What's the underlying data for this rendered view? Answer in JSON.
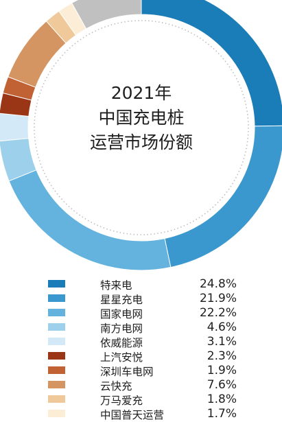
{
  "chart_data": {
    "type": "pie",
    "title": "2021年\n中国充电桩\n运营市场份额",
    "slices": [
      {
        "label": "特来电",
        "value": 24.8,
        "display": "24.8%",
        "color": "#1b7db8"
      },
      {
        "label": "星星充电",
        "value": 21.9,
        "display": "21.9%",
        "color": "#3b98cf"
      },
      {
        "label": "国家电网",
        "value": 22.2,
        "display": "22.2%",
        "color": "#64b2de"
      },
      {
        "label": "南方电网",
        "value": 4.6,
        "display": "4.6%",
        "color": "#9dd0ea"
      },
      {
        "label": "依威能源",
        "value": 3.1,
        "display": "3.1%",
        "color": "#d4e9f7"
      },
      {
        "label": "上汽安悦",
        "value": 2.3,
        "display": "2.3%",
        "color": "#9a3516"
      },
      {
        "label": "深圳车电网",
        "value": 1.9,
        "display": "1.9%",
        "color": "#c06233"
      },
      {
        "label": "云快充",
        "value": 7.6,
        "display": "7.6%",
        "color": "#d49563"
      },
      {
        "label": "万马爱充",
        "value": 1.8,
        "display": "1.8%",
        "color": "#f0c99a"
      },
      {
        "label": "中国普天运营",
        "value": 1.7,
        "display": "1.7%",
        "color": "#fcedd6"
      },
      {
        "label": "",
        "value": 8.1,
        "display": "",
        "color": "#c0c0c0"
      }
    ]
  }
}
